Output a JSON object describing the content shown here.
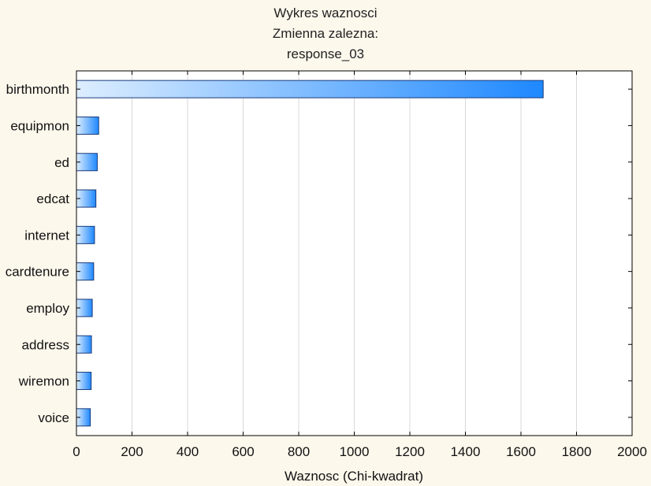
{
  "chart_data": {
    "type": "bar",
    "orientation": "horizontal",
    "title": [
      "Wykres waznosci",
      "Zmienna zalezna:",
      "response_03"
    ],
    "xlabel": "Waznosc (Chi-kwadrat)",
    "ylabel": "",
    "xlim": [
      0,
      2000
    ],
    "xticks": [
      0,
      200,
      400,
      600,
      800,
      1000,
      1200,
      1400,
      1600,
      1800,
      2000
    ],
    "categories": [
      "birthmonth",
      "equipmon",
      "ed",
      "edcat",
      "internet",
      "cardtenure",
      "employ",
      "address",
      "wiremon",
      "voice"
    ],
    "values": [
      1680,
      80,
      75,
      70,
      65,
      62,
      57,
      54,
      53,
      50
    ],
    "grid": "vertical",
    "colors": {
      "background": "#fdf8ec",
      "plot_background": "#ffffff",
      "bar_fill_light": "#ddeeff",
      "bar_fill_dark": "#1e88ff",
      "bar_stroke": "#1a3a7a",
      "grid": "#d8d8d8"
    }
  }
}
